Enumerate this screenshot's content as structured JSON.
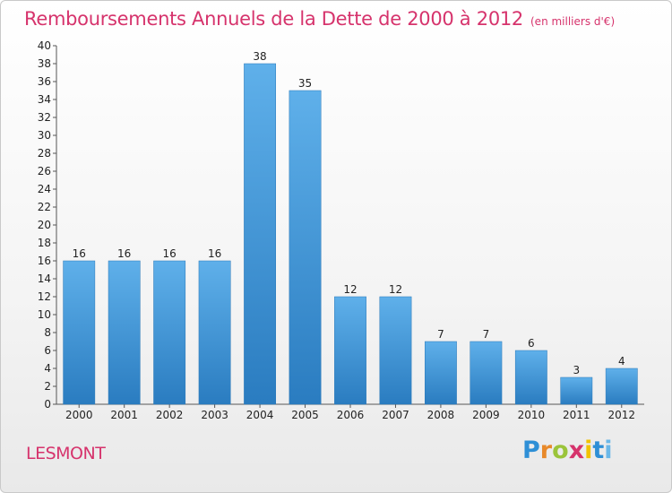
{
  "header": {
    "title": "Remboursements Annuels de la Dette de 2000 à 2012",
    "subtitle": "(en milliers d'€)"
  },
  "footer": {
    "commune": "LESMONT",
    "logo_letters": [
      "P",
      "r",
      "o",
      "x",
      "i",
      "t",
      "i"
    ]
  },
  "chart_data": {
    "type": "bar",
    "title": "Remboursements Annuels de la Dette de 2000 à 2012",
    "subtitle": "(en milliers d'€)",
    "xlabel": "",
    "ylabel": "",
    "categories": [
      "2000",
      "2001",
      "2002",
      "2003",
      "2004",
      "2005",
      "2006",
      "2007",
      "2008",
      "2009",
      "2010",
      "2011",
      "2012"
    ],
    "values": [
      16,
      16,
      16,
      16,
      38,
      35,
      12,
      12,
      7,
      7,
      6,
      3,
      4
    ],
    "ylim": [
      0,
      40
    ],
    "ytick_step": 2,
    "grid": false,
    "bar_color": "#4a9fdd",
    "data_labels": true
  }
}
